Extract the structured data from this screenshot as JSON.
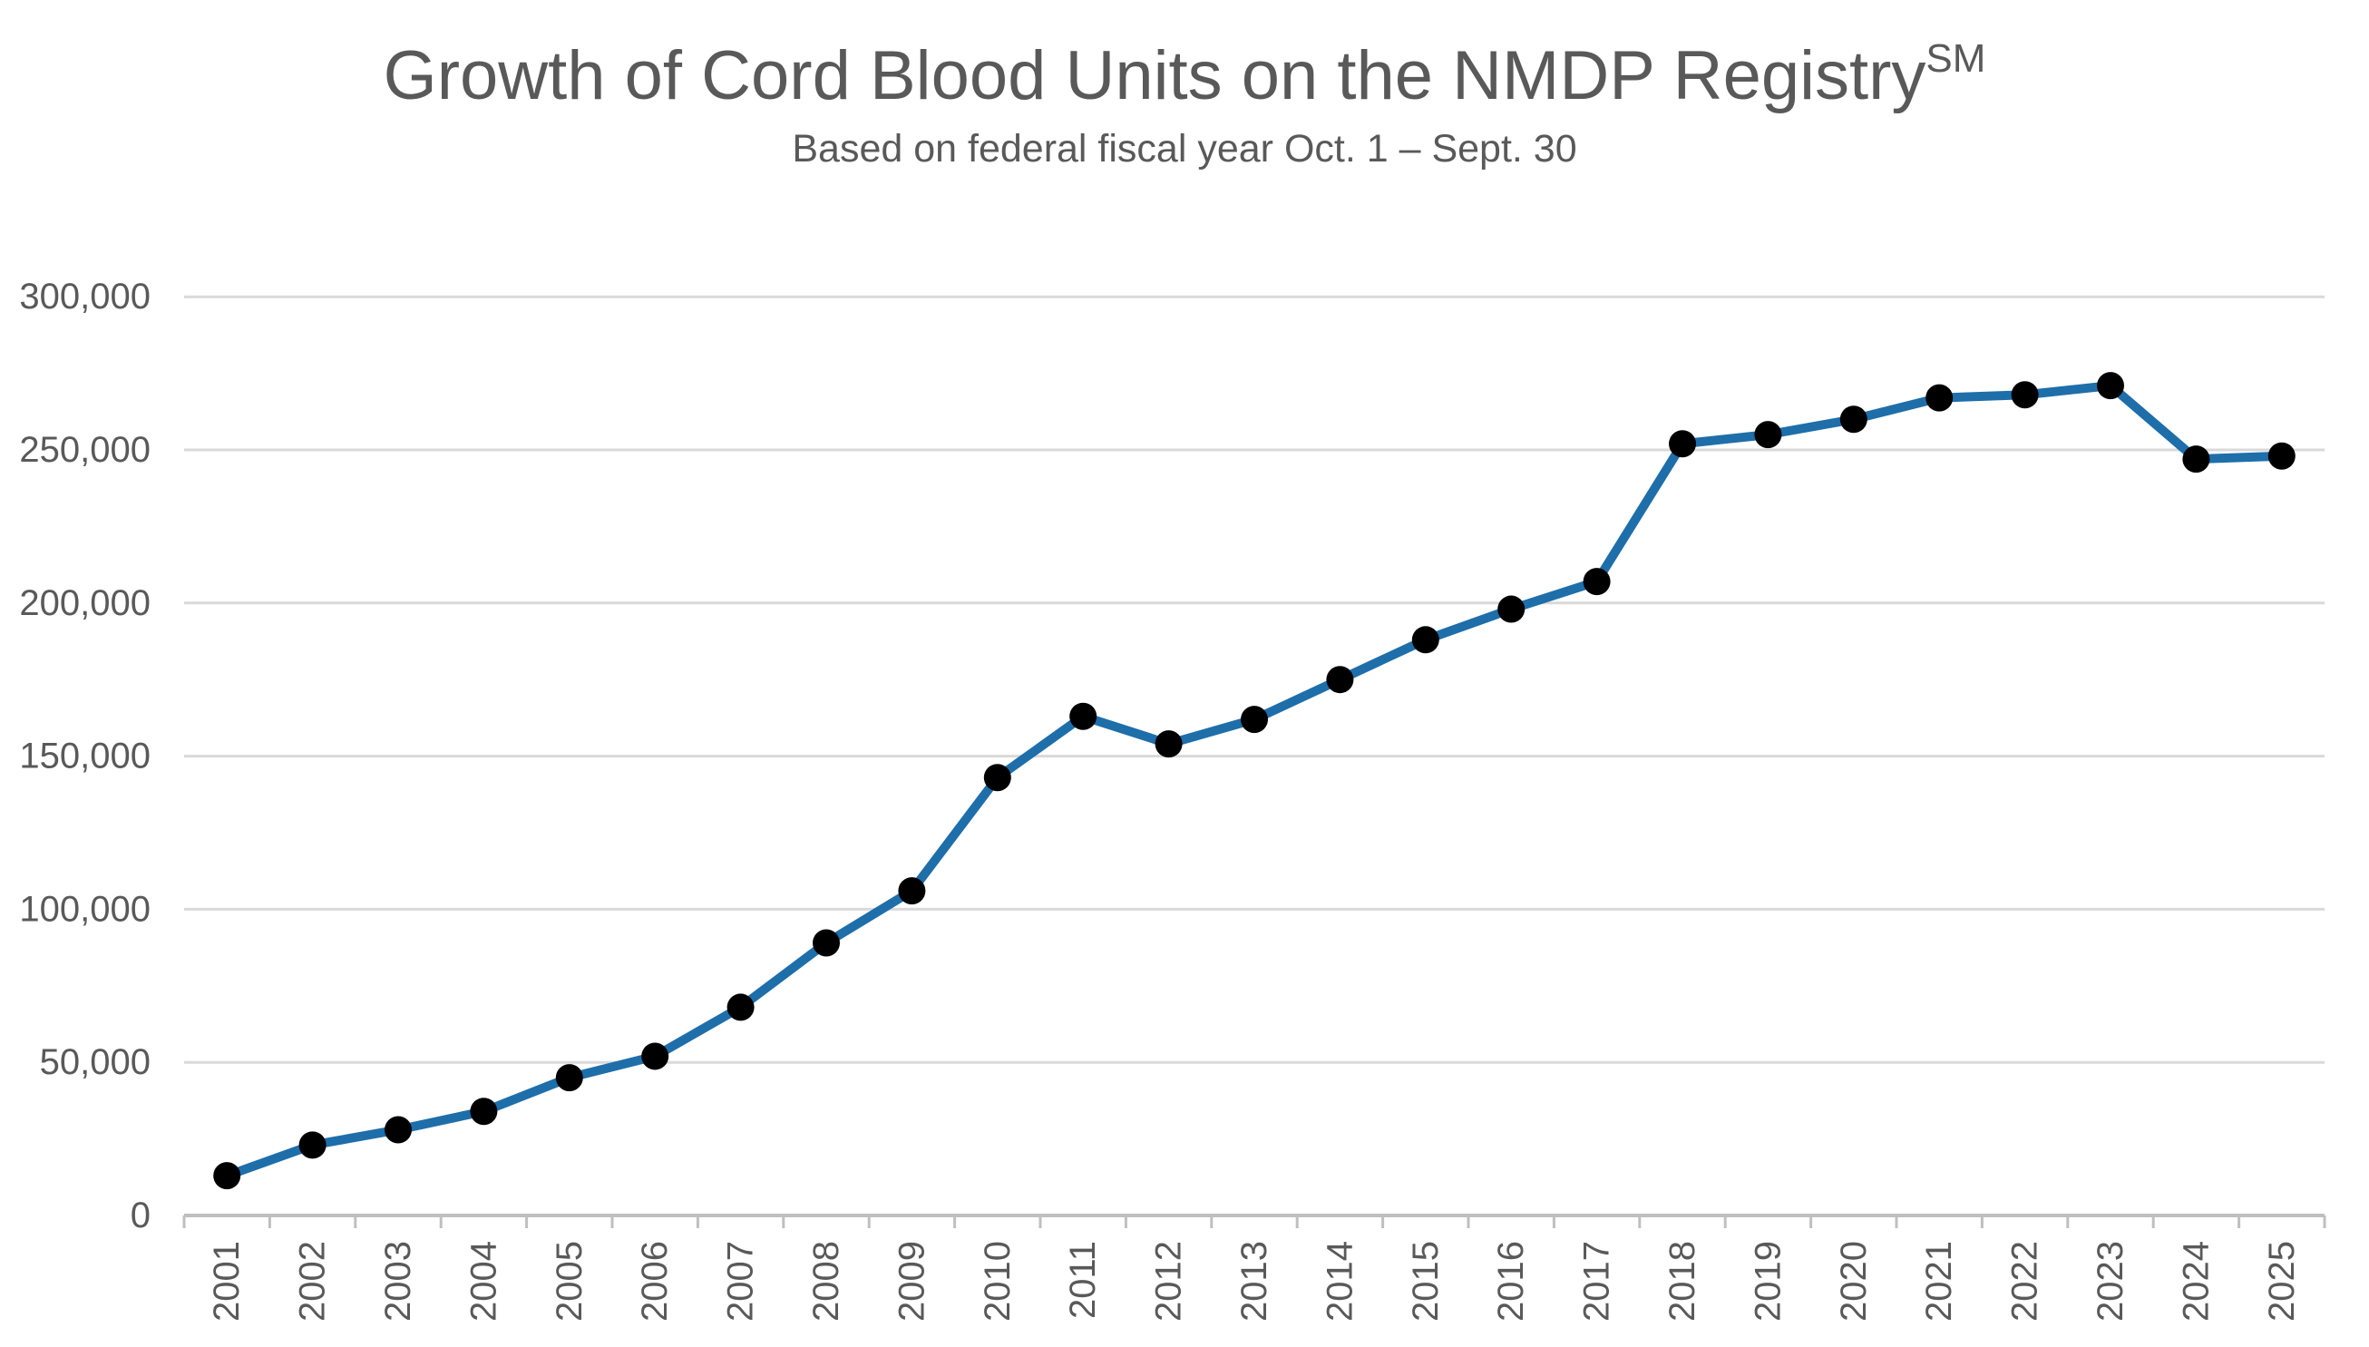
{
  "header": {
    "title": "Growth of Cord Blood Units on the NMDP Registry",
    "title_superscript": "SM",
    "subtitle": "Based on federal fiscal year Oct. 1 – Sept. 30"
  },
  "colors": {
    "line": "#1E6EAA",
    "marker": "#000000",
    "gridline": "#D9D9D9",
    "axis": "#BFBFBF",
    "label_text": "#595959"
  },
  "chart_data": {
    "type": "line",
    "title": "Growth of Cord Blood Units on the NMDP Registry℠",
    "subtitle": "Based on federal fiscal year Oct. 1 – Sept. 30",
    "categories": [
      "2001",
      "2002",
      "2003",
      "2004",
      "2005",
      "2006",
      "2007",
      "2008",
      "2009",
      "2010",
      "2011",
      "2012",
      "2013",
      "2014",
      "2015",
      "2016",
      "2017",
      "2018",
      "2019",
      "2020",
      "2021",
      "2022",
      "2023",
      "2024",
      "2025"
    ],
    "series": [
      {
        "name": "Cord blood units",
        "values": [
          13000,
          23000,
          28000,
          34000,
          45000,
          52000,
          68000,
          89000,
          106000,
          143000,
          163000,
          154000,
          162000,
          175000,
          188000,
          198000,
          207000,
          252000,
          255000,
          260000,
          267000,
          268000,
          271000,
          247000,
          248000
        ]
      }
    ],
    "xlabel": "",
    "ylabel": "",
    "ylim": [
      0,
      300000
    ],
    "ytick_interval": 50000,
    "ytick_labels": [
      "0",
      "50,000",
      "100,000",
      "150,000",
      "200,000",
      "250,000",
      "300,000"
    ],
    "grid": true,
    "legend": "none",
    "marker": "filled-circle",
    "x_tick_label_rotation": -90
  }
}
